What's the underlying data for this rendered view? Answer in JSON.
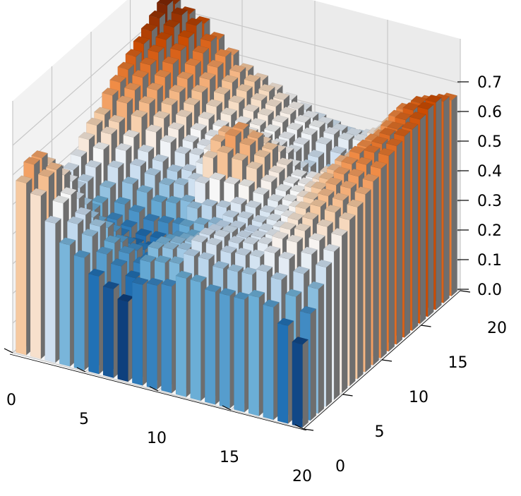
{
  "chart_data": {
    "type": "bar3d",
    "title": "",
    "xlabel": "",
    "ylabel": "",
    "zlabel": "",
    "x_ticks": [
      "0",
      "5",
      "10",
      "15",
      "20"
    ],
    "y_ticks": [
      "0",
      "5",
      "10",
      "15",
      "20"
    ],
    "z_ticks": [
      "0.0",
      "0.1",
      "0.2",
      "0.3",
      "0.4",
      "0.5",
      "0.6",
      "0.7"
    ],
    "xlim": [
      0,
      20
    ],
    "ylim": [
      0,
      20
    ],
    "zlim": [
      0,
      0.7
    ],
    "grid": true,
    "colormap": "diverging blue-white-orange",
    "colors": {
      "low": "#08306b",
      "mid_low": "#c6dbef",
      "mid": "#f7f7f7",
      "mid_high": "#f6c9a0",
      "high": "#7f2704"
    },
    "grid_size": [
      20,
      20
    ],
    "front_row_values_y0": [
      0.58,
      0.55,
      0.47,
      0.41,
      0.38,
      0.33,
      0.3,
      0.27,
      0.34,
      0.35,
      0.36,
      0.4,
      0.4,
      0.38,
      0.38,
      0.38,
      0.4,
      0.38,
      0.33,
      0.28
    ],
    "right_column_values_x19": [
      0.28,
      0.36,
      0.42,
      0.47,
      0.5,
      0.53,
      0.56,
      0.58,
      0.6,
      0.62,
      0.64,
      0.66,
      0.67,
      0.68,
      0.68,
      0.69,
      0.7,
      0.7,
      0.68,
      0.66
    ],
    "left_column_values_x0": [
      0.58,
      0.62,
      0.62,
      0.58,
      0.54,
      0.5,
      0.5,
      0.52,
      0.55,
      0.57,
      0.58,
      0.62,
      0.64,
      0.66,
      0.68,
      0.7,
      0.72,
      0.74,
      0.76,
      0.74
    ],
    "back_row_values_y19": [
      0.74,
      0.72,
      0.7,
      0.66,
      0.62,
      0.58,
      0.56,
      0.54,
      0.52,
      0.5,
      0.48,
      0.47,
      0.46,
      0.46,
      0.47,
      0.5,
      0.54,
      0.6,
      0.64,
      0.66
    ],
    "interior_feature": "central region ~0.30-0.45 with a raised ridge near (10,10) ~0.55 and a shallow dip near (14,14) ~0.28"
  }
}
